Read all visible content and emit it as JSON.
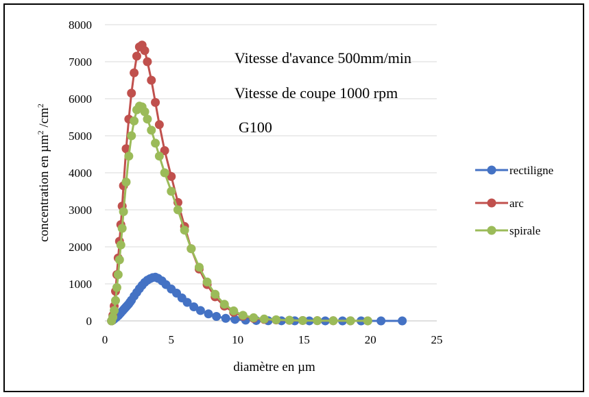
{
  "chart_data": {
    "type": "line",
    "xlabel": "diamètre en µm",
    "ylabel": "concentration en µm² /cm²",
    "ylabel_parts": {
      "before": "concentration en µm",
      "sup1": "2",
      "middle": " /cm",
      "sup2": "2"
    },
    "xlim": [
      0,
      25
    ],
    "ylim": [
      0,
      8000
    ],
    "xticks": [
      0,
      5,
      10,
      15,
      20,
      25
    ],
    "yticks": [
      0,
      1000,
      2000,
      3000,
      4000,
      5000,
      6000,
      7000,
      8000
    ],
    "grid": "horizontal",
    "legend_position": "right",
    "annotations": [
      "Vitesse d'avance 500mm/min",
      "Vitesse de coupe 1000 rpm",
      "G100"
    ],
    "series": [
      {
        "name": "rectiligne",
        "color": "#4472c4",
        "x": [
          0.5,
          0.6,
          0.7,
          0.8,
          0.9,
          1.0,
          1.1,
          1.2,
          1.3,
          1.4,
          1.5,
          1.6,
          1.7,
          1.8,
          1.9,
          2.0,
          2.2,
          2.4,
          2.6,
          2.8,
          3.0,
          3.2,
          3.4,
          3.6,
          3.8,
          4.0,
          4.3,
          4.6,
          5.0,
          5.4,
          5.8,
          6.2,
          6.7,
          7.2,
          7.8,
          8.4,
          9.1,
          9.8,
          10.6,
          11.4,
          12.3,
          13.3,
          14.3,
          15.4,
          16.6,
          17.9,
          19.3,
          20.8,
          22.4
        ],
        "y": [
          0,
          20,
          50,
          80,
          110,
          140,
          180,
          220,
          260,
          300,
          340,
          380,
          420,
          460,
          510,
          560,
          670,
          770,
          870,
          960,
          1040,
          1100,
          1140,
          1170,
          1180,
          1150,
          1080,
          980,
          860,
          750,
          620,
          500,
          380,
          280,
          190,
          120,
          70,
          40,
          20,
          10,
          5,
          3,
          2,
          1,
          1,
          0,
          0,
          0,
          0
        ]
      },
      {
        "name": "arc",
        "color": "#c0504d",
        "x": [
          0.5,
          0.6,
          0.7,
          0.8,
          0.9,
          1.0,
          1.1,
          1.2,
          1.3,
          1.4,
          1.6,
          1.8,
          2.0,
          2.2,
          2.4,
          2.6,
          2.8,
          3.0,
          3.2,
          3.5,
          3.8,
          4.1,
          4.5,
          5.0,
          5.5,
          6.0,
          6.5,
          7.1,
          7.7,
          8.3,
          9.0,
          9.7,
          10.4,
          11.2,
          12.0,
          12.9,
          13.9,
          14.9,
          16.0,
          17.2,
          18.5,
          19.8
        ],
        "y": [
          0,
          150,
          400,
          800,
          1250,
          1700,
          2150,
          2600,
          3100,
          3650,
          4650,
          5450,
          6150,
          6700,
          7150,
          7400,
          7450,
          7300,
          7000,
          6500,
          5900,
          5300,
          4600,
          3900,
          3200,
          2550,
          1950,
          1400,
          980,
          650,
          400,
          230,
          130,
          70,
          40,
          25,
          15,
          10,
          6,
          4,
          2,
          1
        ]
      },
      {
        "name": "spirale",
        "color": "#9bbb59",
        "x": [
          0.5,
          0.6,
          0.7,
          0.8,
          0.9,
          1.0,
          1.1,
          1.2,
          1.3,
          1.4,
          1.6,
          1.8,
          2.0,
          2.2,
          2.4,
          2.6,
          2.8,
          3.0,
          3.2,
          3.5,
          3.8,
          4.1,
          4.5,
          5.0,
          5.5,
          6.0,
          6.5,
          7.1,
          7.7,
          8.3,
          9.0,
          9.7,
          10.4,
          11.2,
          12.0,
          12.9,
          13.9,
          14.9,
          16.0,
          17.2,
          18.5,
          19.8
        ],
        "y": [
          0,
          100,
          280,
          550,
          900,
          1250,
          1650,
          2050,
          2500,
          2950,
          3750,
          4450,
          5000,
          5400,
          5700,
          5800,
          5780,
          5650,
          5450,
          5150,
          4800,
          4450,
          4000,
          3500,
          3000,
          2450,
          1950,
          1450,
          1050,
          720,
          450,
          270,
          150,
          85,
          50,
          30,
          18,
          10,
          6,
          4,
          2,
          1
        ]
      }
    ]
  }
}
